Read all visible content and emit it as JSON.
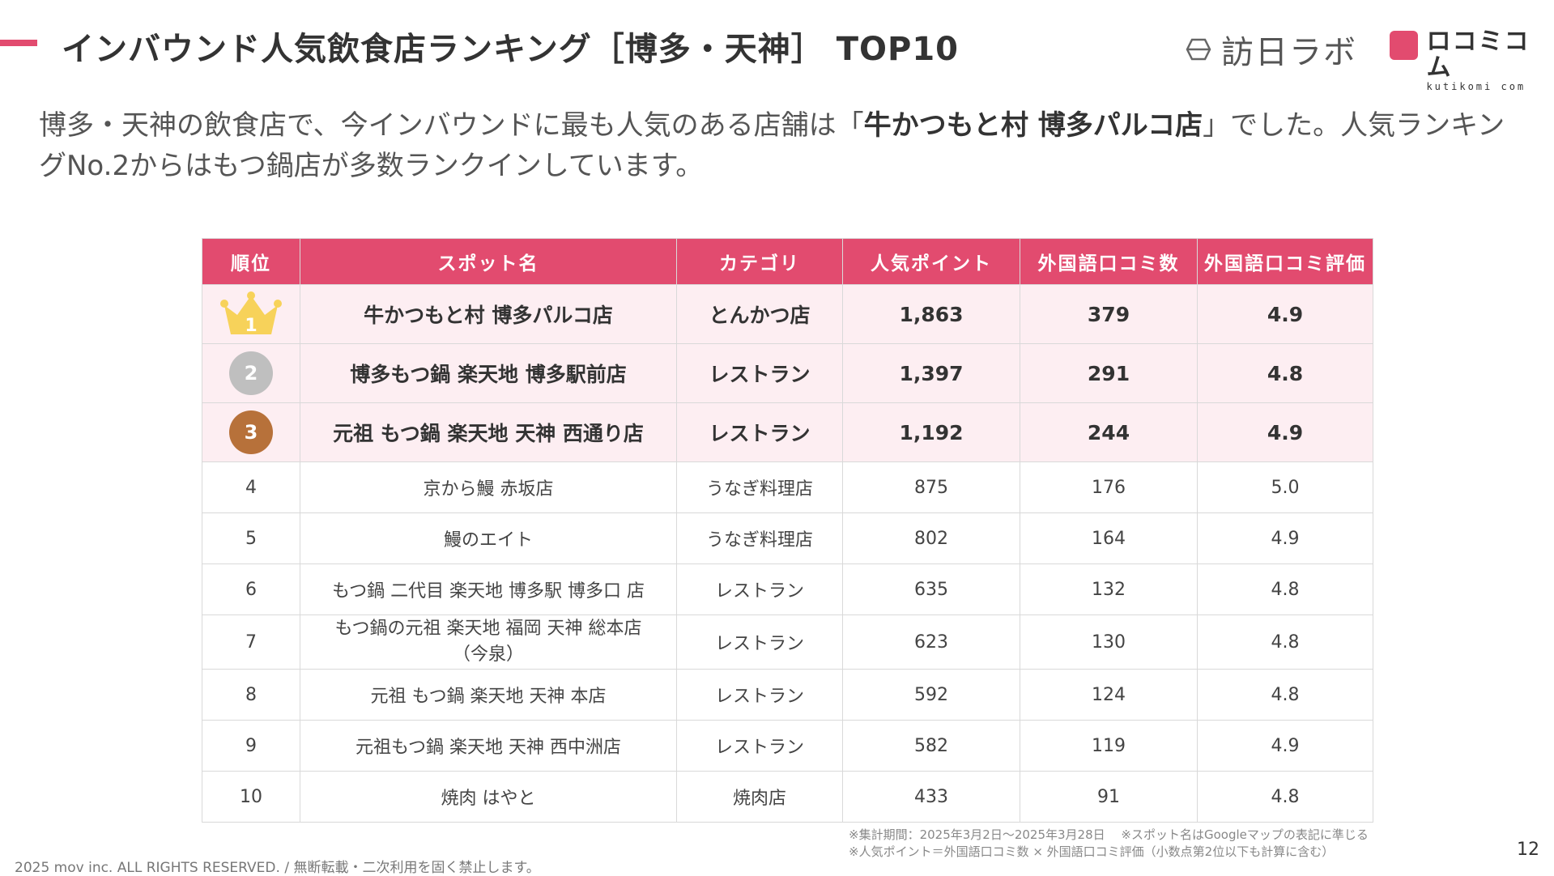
{
  "header": {
    "title": "インバウンド人気飲食店ランキング［博多・天神］ TOP10",
    "logo1_text": "訪日ラボ",
    "logo2_text": "ロコミコム",
    "logo2_sub": "kutikomi com",
    "accent_color": "#e24b6f"
  },
  "intro": {
    "before": "博多・天神の飲食店で、今インバウンドに最も人気のある店舗は「",
    "highlight": "牛かつもと村 博多パルコ店",
    "after": "」でした。人気ランキングNo.2からはもつ鍋店が多数ランクインしています。"
  },
  "table": {
    "headers": [
      "順位",
      "スポット名",
      "カテゴリ",
      "人気ポイント",
      "外国語口コミ数",
      "外国語口コミ評価"
    ],
    "rows": [
      {
        "rank": "1",
        "name": "牛かつもと村 博多パルコ店",
        "category": "とんかつ店",
        "points": "1,863",
        "reviews": "379",
        "rating": "4.9"
      },
      {
        "rank": "2",
        "name": "博多もつ鍋 楽天地 博多駅前店",
        "category": "レストラン",
        "points": "1,397",
        "reviews": "291",
        "rating": "4.8"
      },
      {
        "rank": "3",
        "name": "元祖 もつ鍋 楽天地 天神 西通り店",
        "category": "レストラン",
        "points": "1,192",
        "reviews": "244",
        "rating": "4.9"
      },
      {
        "rank": "4",
        "name": "京から鰻 赤坂店",
        "category": "うなぎ料理店",
        "points": "875",
        "reviews": "176",
        "rating": "5.0"
      },
      {
        "rank": "5",
        "name": "鰻のエイト",
        "category": "うなぎ料理店",
        "points": "802",
        "reviews": "164",
        "rating": "4.9"
      },
      {
        "rank": "6",
        "name": "もつ鍋 二代目 楽天地 博多駅 博多口 店",
        "category": "レストラン",
        "points": "635",
        "reviews": "132",
        "rating": "4.8"
      },
      {
        "rank": "7",
        "name": "もつ鍋の元祖 楽天地 福岡 天神 総本店",
        "name2": "（今泉）",
        "category": "レストラン",
        "points": "623",
        "reviews": "130",
        "rating": "4.8"
      },
      {
        "rank": "8",
        "name": "元祖 もつ鍋 楽天地 天神 本店",
        "category": "レストラン",
        "points": "592",
        "reviews": "124",
        "rating": "4.8"
      },
      {
        "rank": "9",
        "name": "元祖もつ鍋 楽天地 天神 西中洲店",
        "category": "レストラン",
        "points": "582",
        "reviews": "119",
        "rating": "4.9"
      },
      {
        "rank": "10",
        "name": "焼肉 はやと",
        "category": "焼肉店",
        "points": "433",
        "reviews": "91",
        "rating": "4.8"
      }
    ]
  },
  "footer": {
    "note1": "※集計期間：2025年3月2日〜2025年3月28日　 ※スポット名はGoogleマップの表記に準じる",
    "note2": "※人気ポイント＝外国語口コミ数 × 外国語口コミ評価（小数点第2位以下も計算に含む）",
    "copyright": "2025 mov inc. ALL RIGHTS RESERVED. / 無断転載・二次利用を固く禁止します。",
    "page_number": "12"
  }
}
